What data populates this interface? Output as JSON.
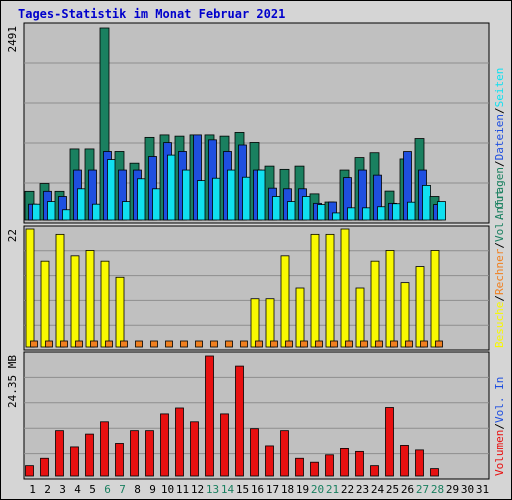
{
  "title": "Tages-Statistik im Monat Februar 2021",
  "chart_data": [
    {
      "type": "bar",
      "name": "panel-top",
      "ymax_label": "2491",
      "ylim": [
        0,
        2491
      ],
      "categories": [
        "1",
        "2",
        "3",
        "4",
        "5",
        "6",
        "7",
        "8",
        "9",
        "10",
        "11",
        "12",
        "13",
        "14",
        "15",
        "16",
        "17",
        "18",
        "19",
        "20",
        "21",
        "22",
        "23",
        "24",
        "25",
        "26",
        "27",
        "28",
        "29",
        "30",
        "31"
      ],
      "series": [
        {
          "name": "Anfragen",
          "color": "#1a8060",
          "values": [
            372,
            473,
            372,
            922,
            922,
            2491,
            889,
            737,
            1072,
            1104,
            1088,
            1104,
            1104,
            1088,
            1136,
            1006,
            699,
            657,
            699,
            339,
            233,
            648,
            810,
            873,
            375,
            792,
            1057,
            305,
            0,
            0,
            0
          ]
        },
        {
          "name": "Dateien",
          "color": "#1e4fe0",
          "values": [
            205,
            372,
            305,
            648,
            648,
            889,
            648,
            648,
            824,
            1004,
            889,
            1104,
            1040,
            889,
            973,
            648,
            413,
            405,
            405,
            216,
            233,
            550,
            648,
            582,
            216,
            888,
            648,
            200,
            0,
            0,
            0
          ]
        },
        {
          "name": "Seiten",
          "color": "#10e0f0",
          "values": [
            205,
            239,
            133,
            405,
            205,
            784,
            239,
            535,
            405,
            842,
            648,
            511,
            542,
            648,
            555,
            648,
            305,
            239,
            305,
            200,
            92,
            158,
            158,
            172,
            211,
            231,
            449,
            239,
            0,
            0,
            0
          ]
        }
      ]
    },
    {
      "type": "bar",
      "name": "panel-middle",
      "ymax_label": "22",
      "ylim": [
        0,
        22
      ],
      "categories": [
        "1",
        "2",
        "3",
        "4",
        "5",
        "6",
        "7",
        "8",
        "9",
        "10",
        "11",
        "12",
        "13",
        "14",
        "15",
        "16",
        "17",
        "18",
        "19",
        "20",
        "21",
        "22",
        "23",
        "24",
        "25",
        "26",
        "27",
        "28",
        "29",
        "30",
        "31"
      ],
      "series": [
        {
          "name": "Besuche",
          "color": "#f8f800",
          "values": [
            22,
            16,
            21,
            17,
            18,
            16,
            13,
            0,
            0,
            0,
            0,
            0,
            0,
            0,
            0,
            9,
            9,
            17,
            11,
            21,
            21,
            22,
            11,
            16,
            18,
            12,
            15,
            18,
            0,
            0,
            0
          ]
        },
        {
          "name": "Rechner",
          "color": "#f08020",
          "values": [
            1,
            1,
            1,
            1,
            1,
            1,
            1,
            1,
            1,
            1,
            1,
            1,
            1,
            1,
            1,
            1,
            1,
            1,
            1,
            1,
            1,
            1,
            1,
            1,
            1,
            1,
            1,
            1,
            0,
            0,
            0
          ]
        }
      ]
    },
    {
      "type": "bar",
      "name": "panel-bottom",
      "ymax_label": "24.35 MB",
      "ylim": [
        0,
        24.35
      ],
      "categories": [
        "1",
        "2",
        "3",
        "4",
        "5",
        "6",
        "7",
        "8",
        "9",
        "10",
        "11",
        "12",
        "13",
        "14",
        "15",
        "16",
        "17",
        "18",
        "19",
        "20",
        "21",
        "22",
        "23",
        "24",
        "25",
        "26",
        "27",
        "28",
        "29",
        "30",
        "31"
      ],
      "series": [
        {
          "name": "Volumen",
          "color": "#e81010",
          "values": [
            2.1,
            3.6,
            9.2,
            5.9,
            8.5,
            11.0,
            6.6,
            9.2,
            9.2,
            12.6,
            13.8,
            11.0,
            24.35,
            12.6,
            22.3,
            9.6,
            6.1,
            9.2,
            3.6,
            2.8,
            4.3,
            5.6,
            5.0,
            2.1,
            13.9,
            6.2,
            5.3,
            1.5,
            0,
            0,
            0
          ]
        }
      ]
    }
  ],
  "legend": {
    "top": [
      {
        "label": "Anfragen",
        "color": "#1a8060"
      },
      {
        "label": "Dateien",
        "color": "#1e4fe0"
      },
      {
        "label": "Seiten",
        "color": "#10e0f0"
      }
    ],
    "middle": [
      {
        "label": "Besuche",
        "color": "#f8f800"
      },
      {
        "label": "Rechner",
        "color": "#f08020"
      },
      {
        "label": "Vol. Out",
        "color": "#1a8060"
      }
    ],
    "bottom": [
      {
        "label": "Volumen",
        "color": "#e81010"
      },
      {
        "label": "Vol. In",
        "color": "#1e4fe0"
      }
    ]
  },
  "weekend_days": [
    "6",
    "7",
    "13",
    "14",
    "20",
    "21",
    "27",
    "28"
  ],
  "colors": {
    "panel_bg": "#c0c0c0",
    "page_bg": "#d5d5d5",
    "weekday_label": "#000000",
    "weekend_label": "#1a8060",
    "title": "#0000cc"
  }
}
